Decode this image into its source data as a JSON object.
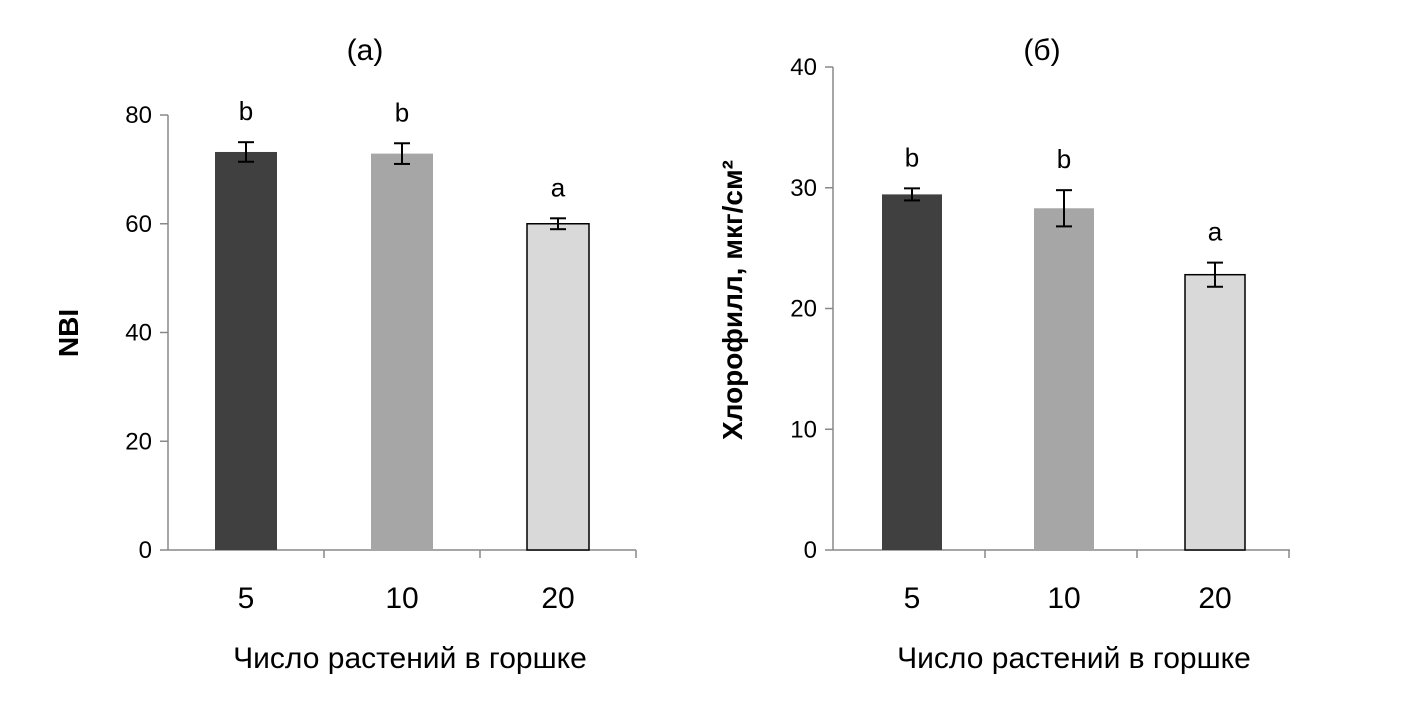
{
  "chart_data": [
    {
      "type": "bar",
      "title": "(а)",
      "xlabel": "Число растений в горшке",
      "ylabel": "NBI",
      "categories": [
        "5",
        "10",
        "20"
      ],
      "values": [
        73.2,
        72.9,
        60.0
      ],
      "errors": [
        1.8,
        1.9,
        1.0
      ],
      "significance": [
        "b",
        "b",
        "a"
      ],
      "colors": [
        "#404040",
        "#a6a6a6",
        "#d9d9d9"
      ],
      "ylim": [
        0,
        80
      ],
      "yticks": [
        "0",
        "20",
        "40",
        "60",
        "80"
      ],
      "grid": false
    },
    {
      "type": "bar",
      "title": "(б)",
      "xlabel": "Число растений в горшке",
      "ylabel": "Хлорофилл, мкг/см²",
      "categories": [
        "5",
        "10",
        "20"
      ],
      "values": [
        29.45,
        28.3,
        22.8
      ],
      "errors": [
        0.5,
        1.5,
        1.0
      ],
      "significance": [
        "b",
        "b",
        "a"
      ],
      "colors": [
        "#404040",
        "#a6a6a6",
        "#d9d9d9"
      ],
      "ylim": [
        0,
        40
      ],
      "yticks": [
        "0",
        "10",
        "20",
        "30",
        "40"
      ],
      "grid": false
    }
  ]
}
